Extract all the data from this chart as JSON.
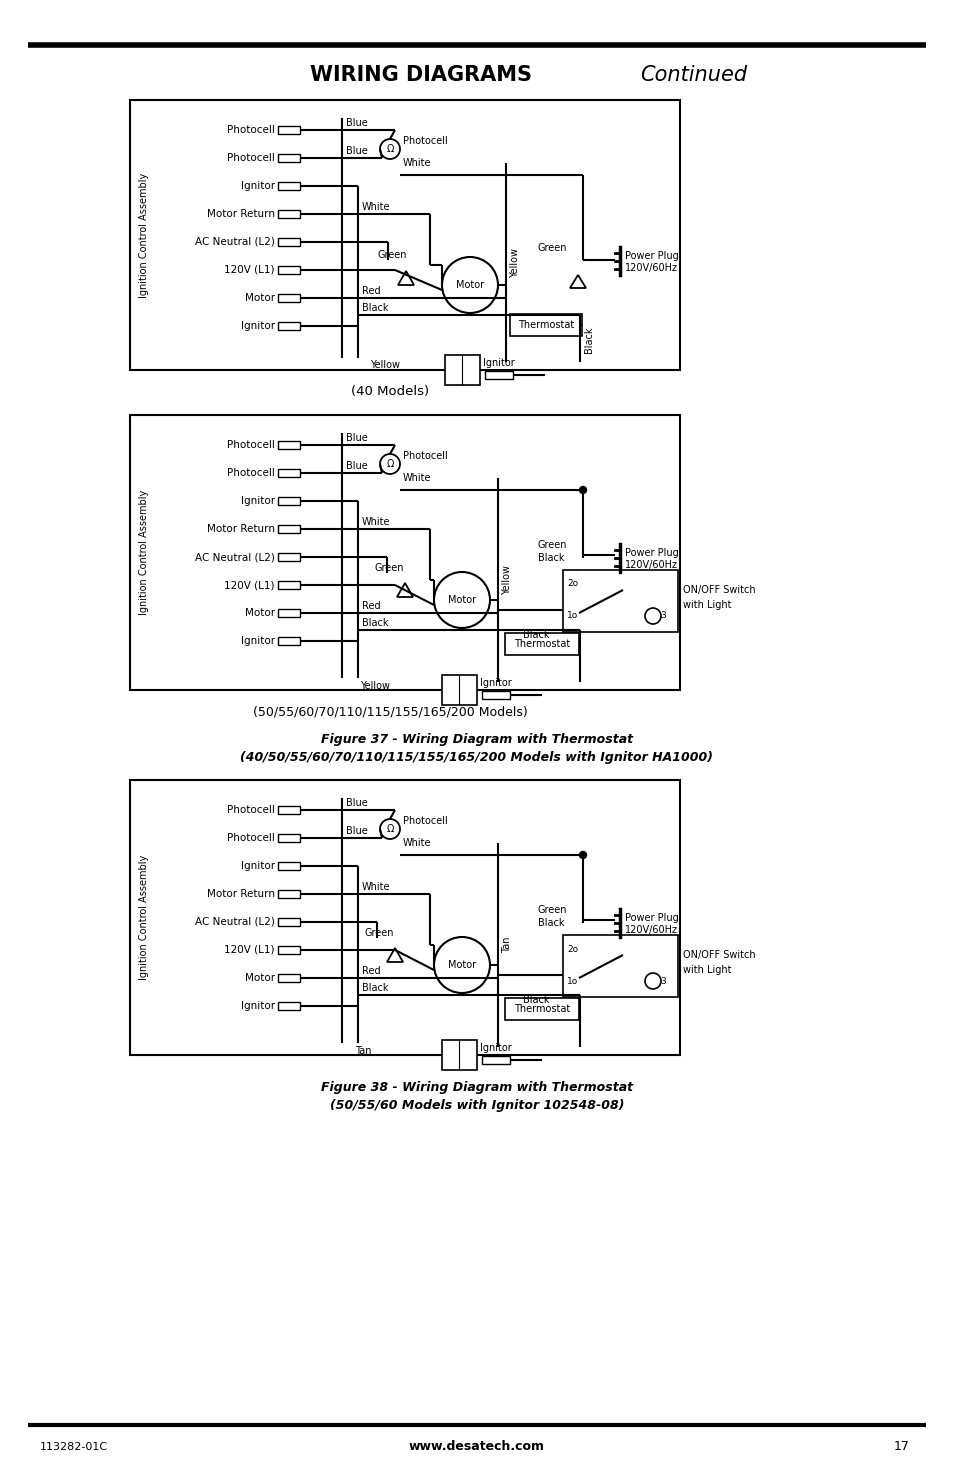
{
  "title_bold": "WIRING DIAGRAMS",
  "title_italic": " Continued",
  "page_num": "17",
  "website": "www.desatech.com",
  "doc_num": "113282-01C",
  "fig37_caption_line1": "Figure 37 - Wiring Diagram with Thermostat",
  "fig37_caption_line2": "(40/50/55/60/70/110/115/155/165/200 Models with Ignitor HA1000)",
  "fig38_caption_line1": "Figure 38 - Wiring Diagram with Thermostat",
  "fig38_caption_line2": "(50/55/60 Models with Ignitor 102548-08)",
  "diagram1_subtitle": "(40 Models)",
  "diagram2_subtitle": "(50/55/60/70/110/115/155/165/200 Models)",
  "bg_color": "#ffffff"
}
